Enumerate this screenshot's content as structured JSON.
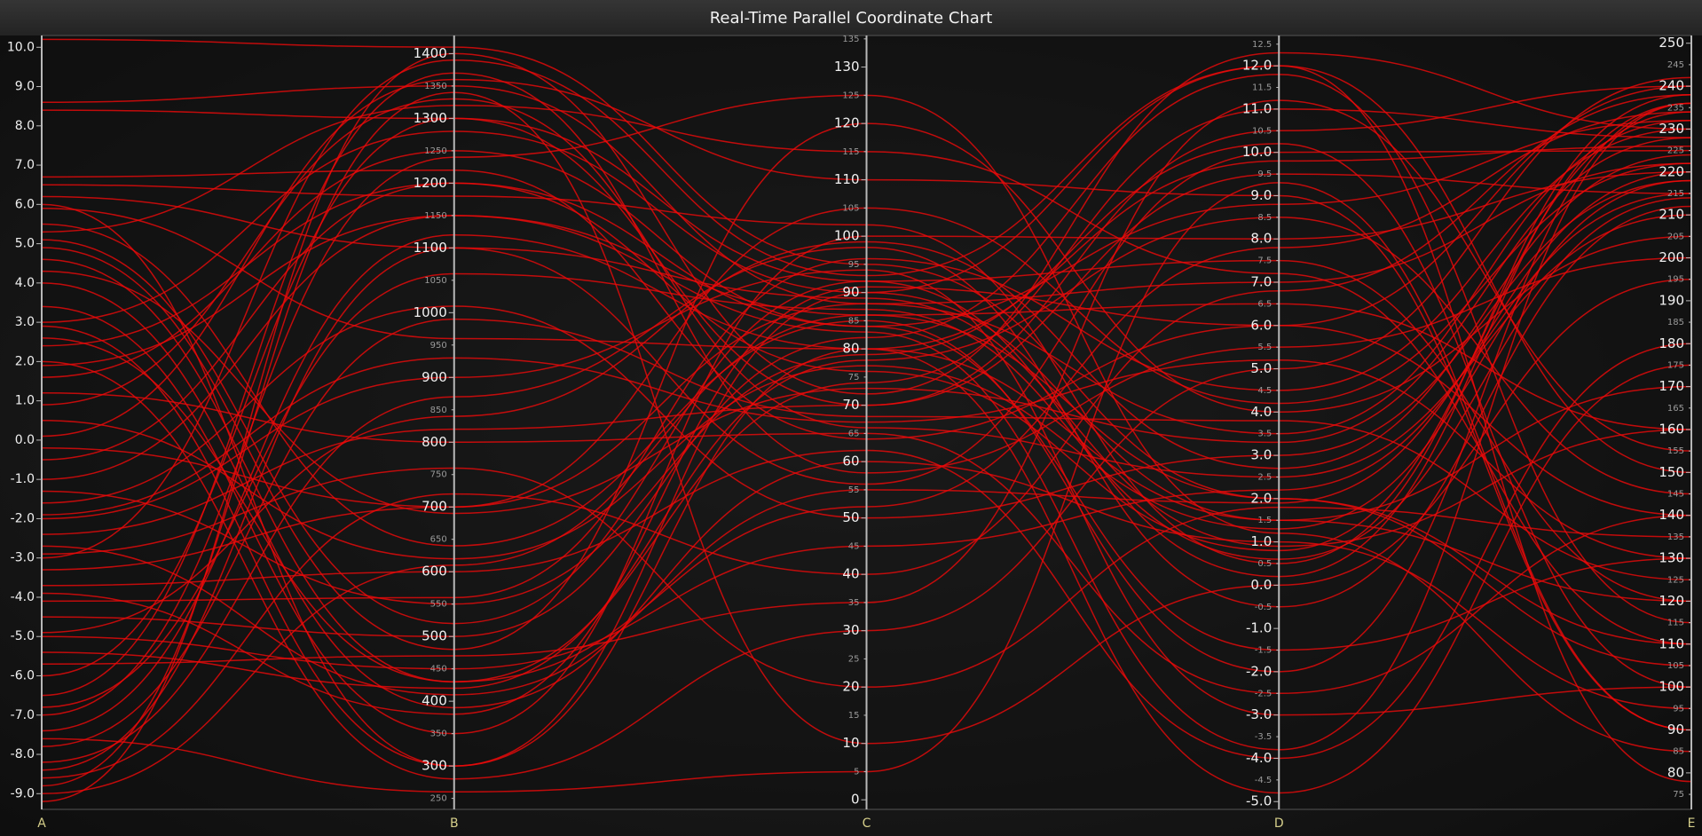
{
  "chart_data": {
    "type": "parallel",
    "title": "Real-Time Parallel Coordinate Chart",
    "color": "#ee0a0a",
    "axes": [
      {
        "name": "A",
        "ylim": [
          -9.4,
          10.3
        ],
        "yticks": [
          {
            "value": -9,
            "label": "-9.0"
          },
          {
            "value": -8,
            "label": "-8.0"
          },
          {
            "value": -7,
            "label": "-7.0"
          },
          {
            "value": -6,
            "label": "-6.0"
          },
          {
            "value": -5,
            "label": "-5.0"
          },
          {
            "value": -4,
            "label": "-4.0"
          },
          {
            "value": -3,
            "label": "-3.0"
          },
          {
            "value": -2,
            "label": "-2.0"
          },
          {
            "value": -1,
            "label": "-1.0"
          },
          {
            "value": 0,
            "label": "0.0"
          },
          {
            "value": 1,
            "label": "1.0"
          },
          {
            "value": 2,
            "label": "2.0"
          },
          {
            "value": 3,
            "label": "3.0"
          },
          {
            "value": 4,
            "label": "4.0"
          },
          {
            "value": 5,
            "label": "5.0"
          },
          {
            "value": 6,
            "label": "6.0"
          },
          {
            "value": 7,
            "label": "7.0"
          },
          {
            "value": 8,
            "label": "8.0"
          },
          {
            "value": 9,
            "label": "9.0"
          },
          {
            "value": 10,
            "label": "10.0"
          }
        ]
      },
      {
        "name": "B",
        "ylim": [
          233,
          1428
        ],
        "yticks": [
          250,
          300,
          350,
          400,
          450,
          500,
          550,
          600,
          650,
          700,
          750,
          800,
          850,
          900,
          950,
          1000,
          1050,
          1100,
          1150,
          1200,
          1250,
          1300,
          1350,
          1400
        ]
      },
      {
        "name": "C",
        "ylim": [
          -1.7,
          135.6
        ],
        "yticks": [
          0,
          5,
          10,
          15,
          20,
          25,
          30,
          35,
          40,
          45,
          50,
          55,
          60,
          65,
          70,
          75,
          80,
          85,
          90,
          95,
          100,
          105,
          110,
          115,
          120,
          125,
          130,
          135
        ]
      },
      {
        "name": "D",
        "ylim": [
          -5.18,
          12.7
        ],
        "yticks": [
          {
            "value": -5,
            "label": "-5.0"
          },
          -4.5,
          {
            "value": -4,
            "label": "-4.0"
          },
          -3.5,
          {
            "value": -3,
            "label": "-3.0"
          },
          -2.5,
          {
            "value": -2,
            "label": "-2.0"
          },
          -1.5,
          {
            "value": -1,
            "label": "-1.0"
          },
          -0.5,
          {
            "value": 0,
            "label": "0.0"
          },
          0.5,
          {
            "value": 1,
            "label": "1.0"
          },
          1.5,
          {
            "value": 2,
            "label": "2.0"
          },
          2.5,
          {
            "value": 3,
            "label": "3.0"
          },
          3.5,
          {
            "value": 4,
            "label": "4.0"
          },
          4.5,
          {
            "value": 5,
            "label": "5.0"
          },
          5.5,
          {
            "value": 6,
            "label": "6.0"
          },
          6.5,
          {
            "value": 7,
            "label": "7.0"
          },
          7.5,
          {
            "value": 8,
            "label": "8.0"
          },
          8.5,
          {
            "value": 9,
            "label": "9.0"
          },
          9.5,
          {
            "value": 10,
            "label": "10.0"
          },
          10.5,
          {
            "value": 11,
            "label": "11.0"
          },
          11.5,
          {
            "value": 12,
            "label": "12.0"
          },
          12.5
        ]
      },
      {
        "name": "E",
        "ylim": [
          71.5,
          251.8
        ],
        "yticks": [
          75,
          80,
          85,
          90,
          95,
          100,
          105,
          110,
          115,
          120,
          125,
          130,
          135,
          140,
          145,
          150,
          155,
          160,
          165,
          170,
          175,
          180,
          185,
          190,
          195,
          200,
          205,
          210,
          215,
          220,
          225,
          230,
          235,
          240,
          245,
          250
        ]
      }
    ],
    "series": [
      {
        "values": [
          10.2,
          1410,
          95,
          2.0,
          110
        ]
      },
      {
        "values": [
          8.6,
          1350,
          88,
          3.5,
          232
        ]
      },
      {
        "values": [
          8.4,
          1300,
          70,
          9.5,
          215
        ]
      },
      {
        "values": [
          6.7,
          1220,
          64,
          6.0,
          140
        ]
      },
      {
        "values": [
          6.5,
          1180,
          102,
          0.5,
          238
        ]
      },
      {
        "values": [
          6.2,
          1100,
          56,
          10.0,
          225
        ]
      },
      {
        "values": [
          5.9,
          960,
          80,
          1.5,
          170
        ]
      },
      {
        "values": [
          5.5,
          640,
          85,
          -2.0,
          236
        ]
      },
      {
        "values": [
          5.1,
          520,
          92,
          7.5,
          120
        ]
      },
      {
        "values": [
          4.9,
          480,
          120,
          4.0,
          205
        ]
      },
      {
        "values": [
          4.6,
          430,
          74,
          11.0,
          228
        ]
      },
      {
        "values": [
          4.0,
          390,
          60,
          1.0,
          95
        ]
      },
      {
        "values": [
          3.4,
          350,
          100,
          8.0,
          220
        ]
      },
      {
        "values": [
          2.9,
          300,
          90,
          12.0,
          150
        ]
      },
      {
        "values": [
          2.0,
          280,
          30,
          5.0,
          242
        ]
      },
      {
        "values": [
          1.6,
          1250,
          84,
          -1.5,
          130
        ]
      },
      {
        "values": [
          0.9,
          1330,
          66,
          2.5,
          210
        ]
      },
      {
        "values": [
          0.1,
          1360,
          110,
          9.0,
          90
        ]
      },
      {
        "values": [
          -0.5,
          1200,
          76,
          0.8,
          234
        ]
      },
      {
        "values": [
          -1.0,
          1150,
          86,
          6.5,
          160
        ]
      },
      {
        "values": [
          -1.6,
          1010,
          50,
          3.0,
          218
        ]
      },
      {
        "values": [
          -2.0,
          900,
          94,
          -3.0,
          100
        ]
      },
      {
        "values": [
          -2.4,
          820,
          70,
          10.5,
          240
        ]
      },
      {
        "values": [
          -2.9,
          760,
          20,
          1.8,
          135
        ]
      },
      {
        "values": [
          -3.3,
          700,
          88,
          7.0,
          222
        ]
      },
      {
        "values": [
          -3.7,
          600,
          62,
          -4.0,
          180
        ]
      },
      {
        "values": [
          -4.1,
          560,
          96,
          4.5,
          230
        ]
      },
      {
        "values": [
          -4.5,
          500,
          82,
          11.8,
          115
        ]
      },
      {
        "values": [
          -5.0,
          450,
          45,
          2.2,
          215
        ]
      },
      {
        "values": [
          -5.4,
          420,
          78,
          8.5,
          145
        ]
      },
      {
        "values": [
          -6.0,
          1300,
          92,
          0.2,
          236
        ]
      },
      {
        "values": [
          -6.5,
          1370,
          58,
          5.5,
          200
        ]
      },
      {
        "values": [
          -7.0,
          1240,
          125,
          1.2,
          85
        ]
      },
      {
        "values": [
          -7.4,
          1120,
          80,
          9.8,
          226
        ]
      },
      {
        "values": [
          -7.8,
          990,
          68,
          3.8,
          125
        ]
      },
      {
        "values": [
          -8.2,
          870,
          98,
          -0.5,
          212
        ]
      },
      {
        "values": [
          -8.6,
          720,
          40,
          6.8,
          238
        ]
      },
      {
        "values": [
          -9.0,
          610,
          86,
          2.0,
          105
        ]
      },
      {
        "values": [
          -9.2,
          1400,
          72,
          12.3,
          230
        ]
      },
      {
        "values": [
          -8.8,
          1340,
          10,
          0.0,
          195
        ]
      },
      {
        "values": [
          3.0,
          1280,
          90,
          1.5,
          120
        ]
      },
      {
        "values": [
          2.4,
          1200,
          84,
          8.8,
          232
        ]
      },
      {
        "values": [
          1.2,
          800,
          65,
          -2.5,
          140
        ]
      },
      {
        "values": [
          -0.2,
          700,
          105,
          4.2,
          222
        ]
      },
      {
        "values": [
          -1.3,
          550,
          79,
          10.2,
          100
        ]
      },
      {
        "values": [
          -2.7,
          410,
          55,
          1.9,
          220
        ]
      },
      {
        "values": [
          -3.9,
          380,
          91,
          6.0,
          240
        ]
      },
      {
        "values": [
          -5.7,
          470,
          35,
          11.2,
          155
        ]
      },
      {
        "values": [
          -6.8,
          1060,
          87,
          0.6,
          214
        ]
      },
      {
        "values": [
          4.3,
          690,
          73,
          3.3,
          228
        ]
      },
      {
        "values": [
          5.3,
          1320,
          115,
          7.2,
          110
        ]
      },
      {
        "values": [
          1.9,
          1150,
          83,
          -3.8,
          236
        ]
      },
      {
        "values": [
          -1.9,
          930,
          67,
          5.2,
          130
        ]
      },
      {
        "values": [
          -4.9,
          840,
          99,
          2.7,
          224
        ]
      },
      {
        "values": [
          -7.6,
          260,
          5,
          9.3,
          90
        ]
      },
      {
        "values": [
          6.0,
          300,
          80,
          -4.8,
          175
        ]
      },
      {
        "values": [
          -3.0,
          1390,
          93,
          12.0,
          78
        ]
      },
      {
        "values": [
          0.5,
          620,
          77,
          1.3,
          218
        ]
      },
      {
        "values": [
          2.6,
          430,
          52,
          7.8,
          234
        ]
      },
      {
        "values": [
          -8.4,
          1100,
          89,
          0.9,
          160
        ]
      }
    ]
  }
}
